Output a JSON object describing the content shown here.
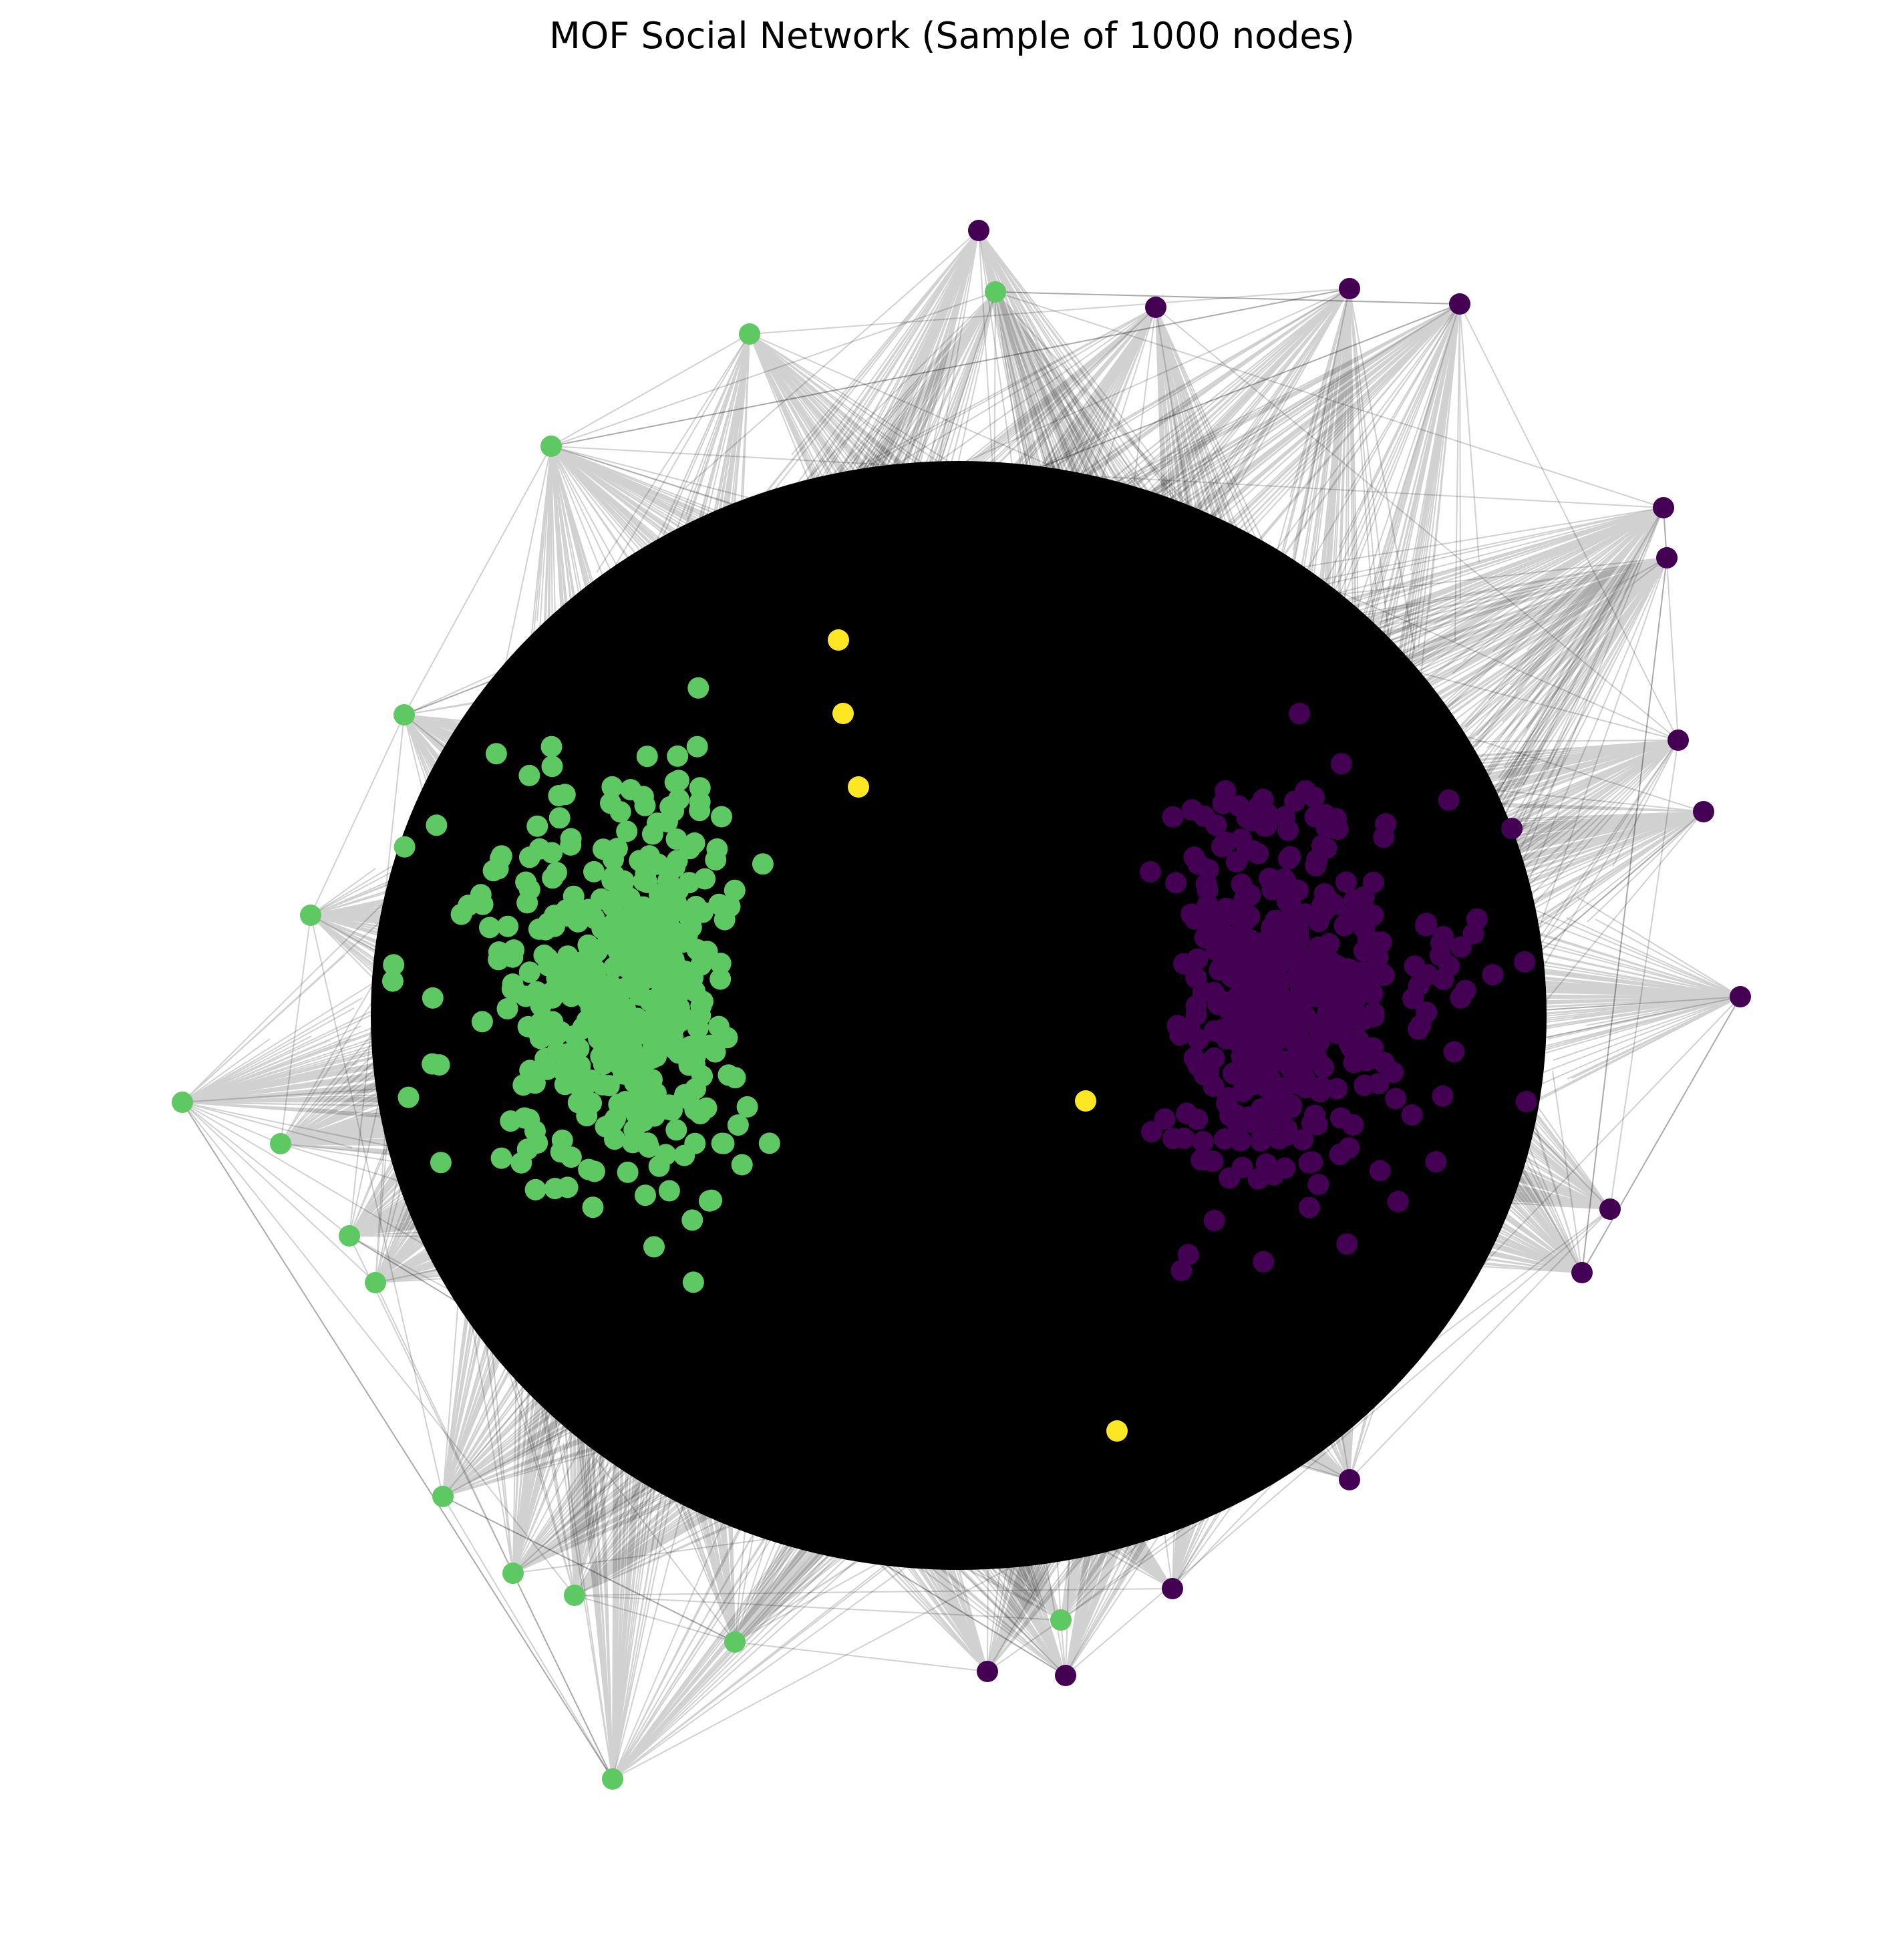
{
  "figure": {
    "title": "MOF Social Network (Sample of 1000 nodes)"
  },
  "chart_data": {
    "type": "network",
    "node_count": 1000,
    "axes_visible": false,
    "edge_color": "#000000",
    "edge_opacity": 0.1,
    "groups": [
      {
        "color": "#440154"
      },
      {
        "color": "#5ec962"
      },
      {
        "color": "#fde725"
      }
    ]
  }
}
